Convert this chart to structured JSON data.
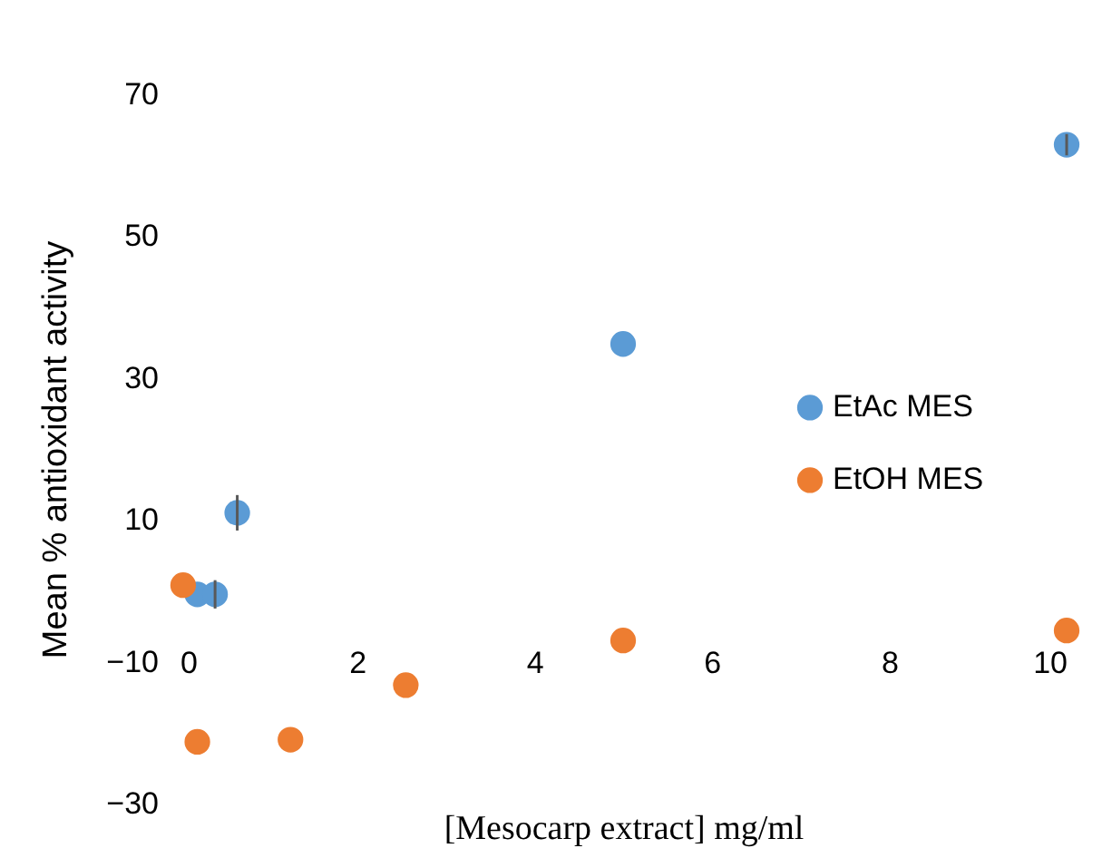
{
  "chart_data": {
    "type": "scatter",
    "xlabel": "[Mesocarp extract] mg/ml",
    "ylabel": "Mean % antioxidant activity",
    "xlim": [
      0,
      10
    ],
    "xticks": [
      0,
      2,
      4,
      6,
      8,
      10
    ],
    "ylim": [
      -30,
      70
    ],
    "yticks": [
      -30,
      -10,
      10,
      30,
      50,
      70
    ],
    "grid": false,
    "legend": "right",
    "marker": "circle",
    "series": [
      {
        "name": "EtAc MES",
        "color": "#5b9bd5",
        "x": [
          0.2,
          0.4,
          0.65,
          5,
          10
        ],
        "values": [
          -0.5,
          -0.5,
          11,
          34.8,
          62.9
        ],
        "errors": [
          null,
          2,
          2.5,
          null,
          1.5
        ]
      },
      {
        "name": "EtOH MES",
        "color": "#ed7d31",
        "x": [
          0.04,
          0.2,
          1.25,
          2.55,
          5,
          10
        ],
        "values": [
          0.8,
          -21.3,
          -21,
          -13.3,
          -7,
          -5.6
        ]
      }
    ]
  }
}
